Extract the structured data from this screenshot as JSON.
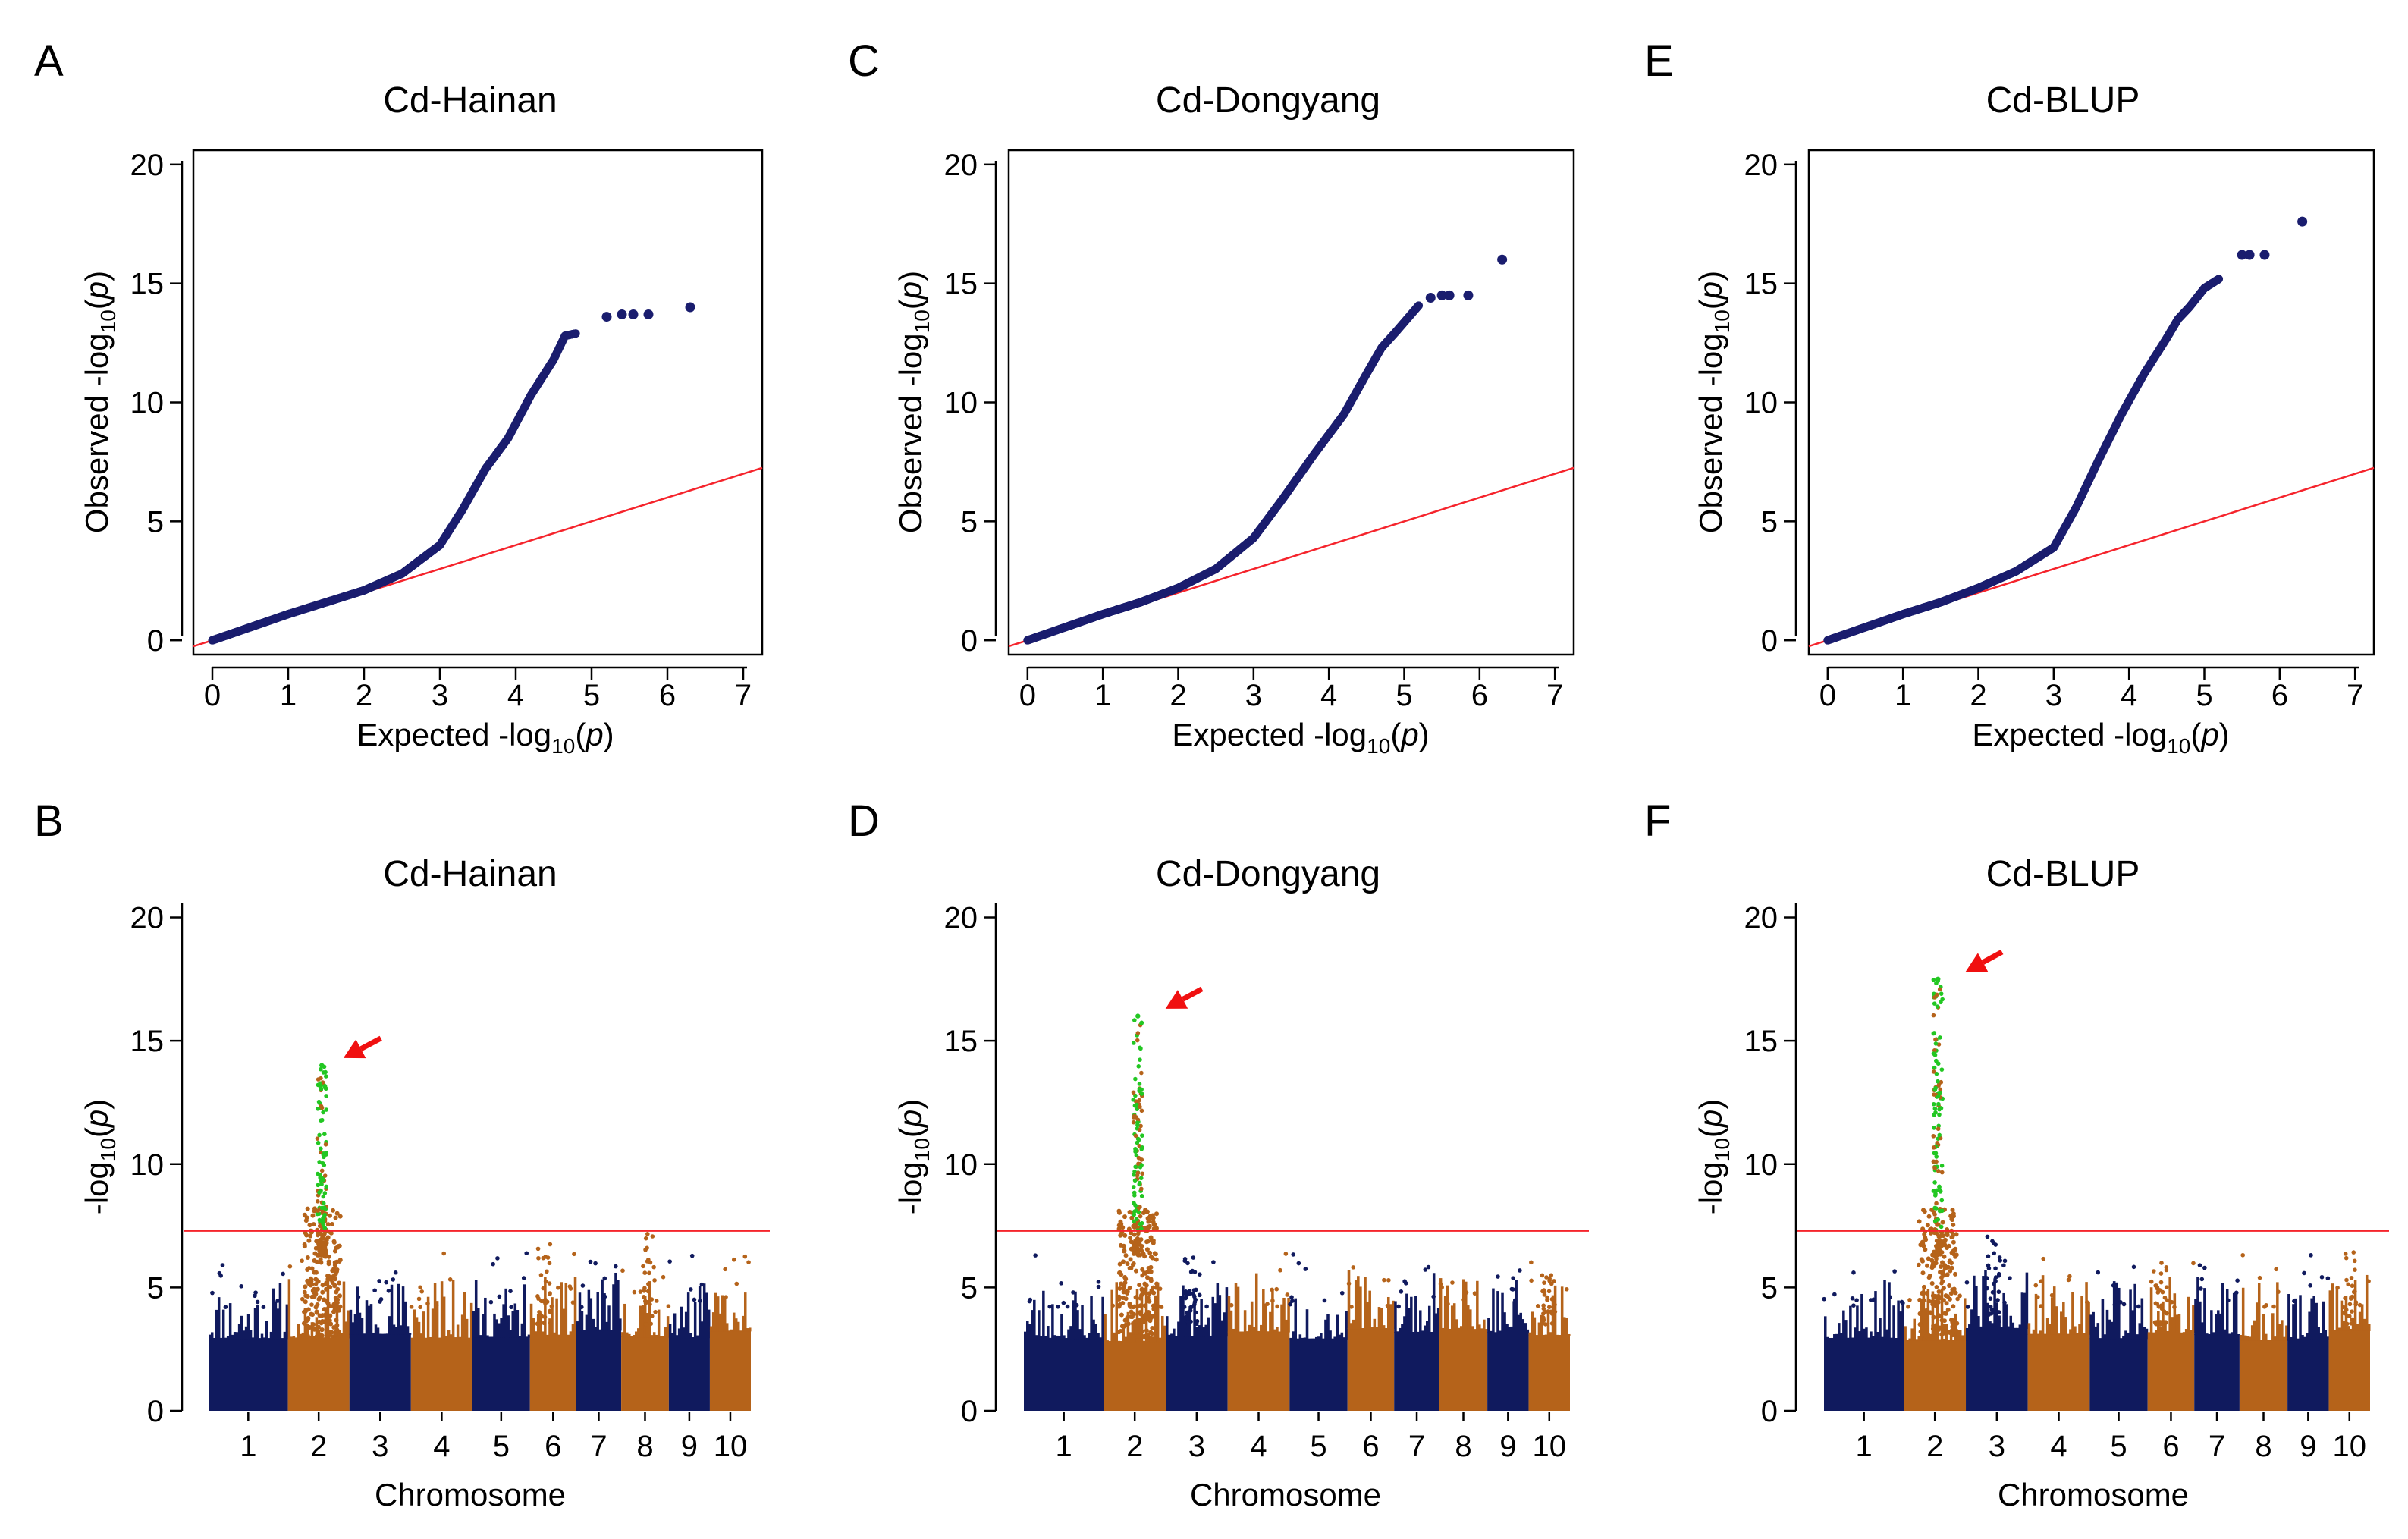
{
  "figure": {
    "colors": {
      "qq_point": "#1a1d6e",
      "reference_line": "#f5242c",
      "chr_dark": "#101a5e",
      "chr_orange": "#b5631a",
      "significant": "#22c722",
      "arrow": "#f01010"
    },
    "chromosomes": [
      {
        "label": "1",
        "size": 1.2
      },
      {
        "label": "2",
        "size": 0.93
      },
      {
        "label": "3",
        "size": 0.93
      },
      {
        "label": "4",
        "size": 0.93
      },
      {
        "label": "5",
        "size": 0.87
      },
      {
        "label": "6",
        "size": 0.7
      },
      {
        "label": "7",
        "size": 0.68
      },
      {
        "label": "8",
        "size": 0.72
      },
      {
        "label": "9",
        "size": 0.62
      },
      {
        "label": "10",
        "size": 0.62
      }
    ]
  },
  "chart_data": [
    {
      "panel": "A",
      "type": "scatter",
      "title": "Cd-Hainan",
      "xlabel": "Expected -log10(p)",
      "ylabel": "Observed -log10(p)",
      "xlim": [
        -0.25,
        7.25
      ],
      "ylim": [
        -0.6,
        20.6
      ],
      "xticks": [
        0,
        1,
        2,
        3,
        4,
        5,
        6,
        7
      ],
      "yticks": [
        0,
        5,
        10,
        15,
        20
      ],
      "reference_line": {
        "from": [
          0,
          0
        ],
        "to": [
          7.3,
          7.3
        ]
      },
      "curve": [
        [
          0,
          0
        ],
        [
          0.5,
          0.55
        ],
        [
          1,
          1.1
        ],
        [
          1.5,
          1.6
        ],
        [
          2,
          2.1
        ],
        [
          2.5,
          2.8
        ],
        [
          3,
          4.0
        ],
        [
          3.3,
          5.5
        ],
        [
          3.6,
          7.2
        ],
        [
          3.9,
          8.5
        ],
        [
          4.2,
          10.3
        ],
        [
          4.5,
          11.8
        ],
        [
          4.65,
          12.8
        ],
        [
          4.8,
          12.9
        ]
      ],
      "outliers": [
        [
          5.2,
          13.6
        ],
        [
          5.4,
          13.7
        ],
        [
          5.55,
          13.7
        ],
        [
          5.75,
          13.7
        ],
        [
          6.3,
          14.0
        ]
      ]
    },
    {
      "panel": "C",
      "type": "scatter",
      "title": "Cd-Dongyang",
      "xlabel": "Expected -log10(p)",
      "ylabel": "Observed -log10(p)",
      "xlim": [
        -0.25,
        7.25
      ],
      "ylim": [
        -0.6,
        20.6
      ],
      "xticks": [
        0,
        1,
        2,
        3,
        4,
        5,
        6,
        7
      ],
      "yticks": [
        0,
        5,
        10,
        15,
        20
      ],
      "reference_line": {
        "from": [
          0,
          0
        ],
        "to": [
          7.3,
          7.3
        ]
      },
      "curve": [
        [
          0,
          0
        ],
        [
          0.5,
          0.55
        ],
        [
          1,
          1.1
        ],
        [
          1.5,
          1.6
        ],
        [
          2,
          2.2
        ],
        [
          2.5,
          3.0
        ],
        [
          3,
          4.3
        ],
        [
          3.4,
          6.0
        ],
        [
          3.8,
          7.8
        ],
        [
          4.2,
          9.5
        ],
        [
          4.5,
          11.2
        ],
        [
          4.7,
          12.3
        ],
        [
          4.9,
          13.0
        ],
        [
          5.2,
          14.1
        ]
      ],
      "outliers": [
        [
          5.35,
          14.4
        ],
        [
          5.5,
          14.5
        ],
        [
          5.6,
          14.5
        ],
        [
          5.85,
          14.5
        ],
        [
          6.3,
          16.0
        ]
      ]
    },
    {
      "panel": "E",
      "type": "scatter",
      "title": "Cd-BLUP",
      "xlabel": "Expected -log10(p)",
      "ylabel": "Observed -log10(p)",
      "xlim": [
        -0.25,
        7.25
      ],
      "ylim": [
        -0.6,
        20.6
      ],
      "xticks": [
        0,
        1,
        2,
        3,
        4,
        5,
        6,
        7
      ],
      "yticks": [
        0,
        5,
        10,
        15,
        20
      ],
      "reference_line": {
        "from": [
          0,
          0
        ],
        "to": [
          7.3,
          7.3
        ]
      },
      "curve": [
        [
          0,
          0
        ],
        [
          0.5,
          0.55
        ],
        [
          1,
          1.1
        ],
        [
          1.5,
          1.6
        ],
        [
          2,
          2.2
        ],
        [
          2.5,
          2.9
        ],
        [
          3,
          3.9
        ],
        [
          3.3,
          5.6
        ],
        [
          3.6,
          7.6
        ],
        [
          3.9,
          9.5
        ],
        [
          4.2,
          11.2
        ],
        [
          4.5,
          12.7
        ],
        [
          4.65,
          13.5
        ],
        [
          4.8,
          14.0
        ],
        [
          5.0,
          14.8
        ],
        [
          5.2,
          15.2
        ]
      ],
      "outliers": [
        [
          5.5,
          16.2
        ],
        [
          5.6,
          16.2
        ],
        [
          5.8,
          16.2
        ],
        [
          6.3,
          17.6
        ]
      ]
    },
    {
      "panel": "B",
      "type": "scatter",
      "subtype": "manhattan",
      "title": "Cd-Hainan",
      "xlabel": "Chromosome",
      "ylabel": "-log10(p)",
      "ylim": [
        0,
        20.6
      ],
      "yticks": [
        0,
        5,
        10,
        15,
        20
      ],
      "threshold": 7.3,
      "peak": {
        "chr_index": 1,
        "pos": 0.55,
        "height": 14.0
      },
      "minor_peaks": [
        {
          "chr_index": 7,
          "pos": 0.6,
          "height": 7.3
        },
        {
          "chr_index": 5,
          "pos": 0.3,
          "height": 6.8
        }
      ],
      "arrow": {
        "from": [
          0.6,
          15.1
        ],
        "to": [
          0.22,
          14.3
        ]
      }
    },
    {
      "panel": "D",
      "type": "scatter",
      "subtype": "manhattan",
      "title": "Cd-Dongyang",
      "xlabel": "Chromosome",
      "ylabel": "-log10(p)",
      "ylim": [
        0,
        20.6
      ],
      "yticks": [
        0,
        5,
        10,
        15,
        20
      ],
      "threshold": 7.3,
      "peak": {
        "chr_index": 1,
        "pos": 0.55,
        "height": 16.0
      },
      "minor_peaks": [
        {
          "chr_index": 2,
          "pos": 0.4,
          "height": 7.0
        },
        {
          "chr_index": 9,
          "pos": 0.5,
          "height": 5.5
        }
      ],
      "arrow": {
        "from": [
          0.65,
          17.1
        ],
        "to": [
          0.28,
          16.3
        ]
      }
    },
    {
      "panel": "F",
      "type": "scatter",
      "subtype": "manhattan",
      "title": "Cd-BLUP",
      "xlabel": "Chromosome",
      "ylabel": "-log10(p)",
      "ylim": [
        0,
        20.6
      ],
      "yticks": [
        0,
        5,
        10,
        15,
        20
      ],
      "threshold": 7.3,
      "peak": {
        "chr_index": 1,
        "pos": 0.55,
        "height": 17.5
      },
      "minor_peaks": [
        {
          "chr_index": 2,
          "pos": 0.45,
          "height": 7.2
        },
        {
          "chr_index": 5,
          "pos": 0.3,
          "height": 6.3
        },
        {
          "chr_index": 9,
          "pos": 0.5,
          "height": 6.5
        }
      ],
      "arrow": {
        "from": [
          0.65,
          18.6
        ],
        "to": [
          0.28,
          17.8
        ]
      }
    }
  ]
}
